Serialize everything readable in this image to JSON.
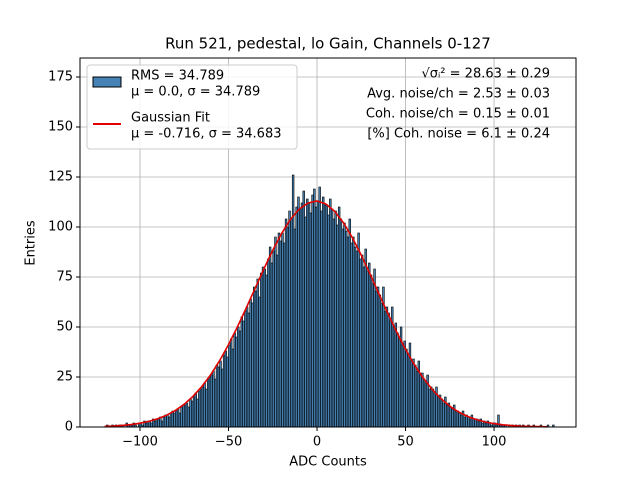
{
  "chart_data": {
    "type": "histogram",
    "title": "Run 521, pedestal, lo Gain, Channels 0-127",
    "xlabel": "ADC Counts",
    "ylabel": "Entries",
    "annotations": [
      "√σᵢ² = 28.63 ± 0.29",
      "Avg. noise/ch = 2.53 ± 0.03",
      "Coh. noise/ch = 0.15 ± 0.01",
      "[%] Coh. noise = 6.1 ± 0.24"
    ],
    "xlim": [
      -133.9,
      146.3
    ],
    "ylim": [
      0,
      184.5
    ],
    "xticks": [
      {
        "value": -100,
        "label": "−100"
      },
      {
        "value": -50,
        "label": "−50"
      },
      0,
      50,
      100
    ],
    "yticks": [
      0,
      25,
      50,
      75,
      100,
      125,
      150,
      175
    ],
    "grid": true,
    "legend": "upper left",
    "bins": [
      -120,
      -119,
      -118,
      -117,
      -116,
      -115,
      -114,
      -113,
      -112,
      -111,
      -110,
      -109,
      -108,
      -107,
      -106,
      -105,
      -104,
      -103,
      -102,
      -101,
      -100,
      -99,
      -98,
      -97,
      -96,
      -95,
      -94,
      -93,
      -92,
      -91,
      -90,
      -89,
      -88,
      -87,
      -86,
      -85,
      -84,
      -83,
      -82,
      -81,
      -80,
      -79,
      -78,
      -77,
      -76,
      -75,
      -74,
      -73,
      -72,
      -71,
      -70,
      -69,
      -68,
      -67,
      -66,
      -65,
      -64,
      -63,
      -62,
      -61,
      -60,
      -59,
      -58,
      -57,
      -56,
      -55,
      -54,
      -53,
      -52,
      -51,
      -50,
      -49,
      -48,
      -47,
      -46,
      -45,
      -44,
      -43,
      -42,
      -41,
      -40,
      -39,
      -38,
      -37,
      -36,
      -35,
      -34,
      -33,
      -32,
      -31,
      -30,
      -29,
      -28,
      -27,
      -26,
      -25,
      -24,
      -23,
      -22,
      -21,
      -20,
      -19,
      -18,
      -17,
      -16,
      -15,
      -14,
      -13,
      -12,
      -11,
      -10,
      -9,
      -8,
      -7,
      -6,
      -5,
      -4,
      -3,
      -2,
      -1,
      0,
      1,
      2,
      3,
      4,
      5,
      6,
      7,
      8,
      9,
      10,
      11,
      12,
      13,
      14,
      15,
      16,
      17,
      18,
      19,
      20,
      21,
      22,
      23,
      24,
      25,
      26,
      27,
      28,
      29,
      30,
      31,
      32,
      33,
      34,
      35,
      36,
      37,
      38,
      39,
      40,
      41,
      42,
      43,
      44,
      45,
      46,
      47,
      48,
      49,
      50,
      51,
      52,
      53,
      54,
      55,
      56,
      57,
      58,
      59,
      60,
      61,
      62,
      63,
      64,
      65,
      66,
      67,
      68,
      69,
      70,
      71,
      72,
      73,
      74,
      75,
      76,
      77,
      78,
      79,
      80,
      81,
      82,
      83,
      84,
      85,
      86,
      87,
      88,
      89,
      90,
      91,
      92,
      93,
      94,
      95,
      96,
      97,
      98,
      99,
      100,
      101,
      102,
      103,
      104,
      105,
      106,
      107,
      108,
      109,
      110,
      111,
      112,
      113,
      114,
      115,
      116,
      117,
      118,
      119,
      120,
      121,
      122,
      123,
      124,
      125,
      126,
      127,
      128,
      129,
      130,
      131,
      132,
      133,
      134
    ],
    "series": [
      {
        "name": "RMS = 34.789",
        "params": "μ = 0.0, σ = 34.789",
        "type": "histogram",
        "color": "#4682b4",
        "values": [
          0,
          1,
          0,
          0,
          1,
          0,
          1,
          0,
          1,
          1,
          1,
          0,
          2,
          1,
          1,
          1,
          2,
          1,
          0,
          2,
          2,
          1,
          3,
          2,
          3,
          3,
          2,
          4,
          3,
          4,
          4,
          5,
          3,
          5,
          6,
          6,
          5,
          7,
          8,
          7,
          8,
          9,
          7,
          10,
          11,
          11,
          12,
          10,
          14,
          13,
          15,
          17,
          14,
          18,
          19,
          20,
          22,
          19,
          24,
          25,
          26,
          28,
          24,
          31,
          30,
          33,
          29,
          36,
          38,
          35,
          41,
          44,
          39,
          47,
          45,
          50,
          48,
          55,
          53,
          58,
          60,
          57,
          64,
          62,
          70,
          68,
          74,
          65,
          77,
          80,
          79,
          76,
          84,
          90,
          82,
          88,
          95,
          86,
          97,
          93,
          97,
          92,
          104,
          100,
          108,
          104,
          126,
          99,
          110,
          115,
          109,
          112,
          118,
          105,
          114,
          112,
          107,
          116,
          119,
          110,
          113,
          120,
          108,
          115,
          111,
          111,
          106,
          114,
          109,
          104,
          108,
          101,
          110,
          104,
          99,
          102,
          98,
          95,
          104,
          92,
          95,
          90,
          88,
          97,
          84,
          86,
          80,
          89,
          78,
          82,
          76,
          72,
          79,
          68,
          70,
          66,
          62,
          70,
          58,
          60,
          57,
          53,
          60,
          50,
          52,
          47,
          44,
          50,
          41,
          43,
          39,
          36,
          42,
          33,
          34,
          31,
          28,
          33,
          26,
          27,
          24,
          22,
          26,
          19,
          20,
          19,
          17,
          20,
          15,
          16,
          14,
          12,
          15,
          11,
          12,
          10,
          9,
          11,
          8,
          8,
          7,
          6,
          8,
          5,
          6,
          5,
          4,
          6,
          4,
          4,
          4,
          3,
          4,
          2,
          3,
          2,
          3,
          2,
          1,
          2,
          2,
          1,
          6,
          1,
          1,
          1,
          1,
          0,
          1,
          0,
          1,
          0,
          1,
          0,
          1,
          0,
          1,
          0,
          0,
          1,
          0,
          0,
          1,
          0,
          0,
          0,
          1,
          0,
          0,
          0,
          1,
          0,
          0,
          1
        ]
      },
      {
        "name": "Gaussian Fit",
        "params": "μ = -0.716, σ = 34.683",
        "type": "line",
        "color": "#e00000",
        "x": [
          -120,
          -115,
          -110,
          -105,
          -100,
          -95,
          -90,
          -85,
          -80,
          -75,
          -70,
          -65,
          -60,
          -55,
          -50,
          -45,
          -40,
          -35,
          -30,
          -25,
          -20,
          -15,
          -10,
          -5,
          0,
          5,
          10,
          15,
          20,
          25,
          30,
          35,
          40,
          45,
          50,
          55,
          60,
          65,
          70,
          75,
          80,
          85,
          90,
          95,
          100,
          105,
          110,
          115,
          120,
          125,
          130
        ],
        "values": [
          0.3,
          0.5,
          0.8,
          1.2,
          1.9,
          2.8,
          4.1,
          5.9,
          8.3,
          11.4,
          15.4,
          20.3,
          26.2,
          33.2,
          41.2,
          50,
          59.5,
          69.3,
          79.1,
          88.4,
          96.8,
          103.8,
          109,
          112,
          113,
          111.5,
          107.8,
          102,
          94.6,
          85.9,
          76.4,
          66.5,
          56.8,
          47.5,
          38.8,
          31.1,
          24.5,
          18.8,
          14.2,
          10.4,
          7.5,
          5.3,
          3.7,
          2.5,
          1.7,
          1.1,
          0.7,
          0.4,
          0.3,
          0.2,
          0.1
        ]
      }
    ]
  }
}
